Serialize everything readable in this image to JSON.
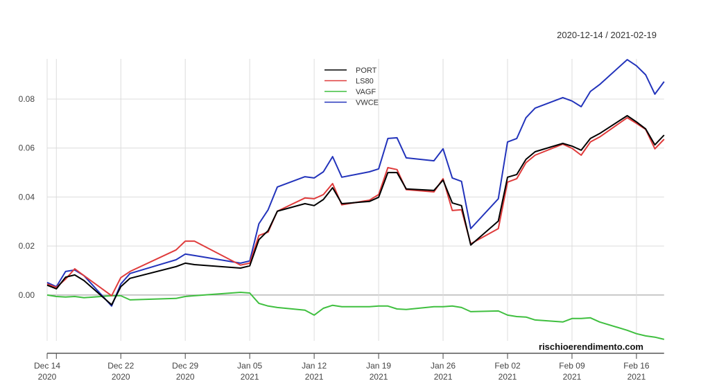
{
  "chart_data": {
    "type": "line",
    "date_range_label": "2020-12-14 / 2021-02-19",
    "watermark": "rischioerendimento.com",
    "ylim": [
      -0.0187,
      0.0964
    ],
    "grid": true,
    "legend_position": "top-center",
    "y_ticks": [
      "0.00",
      "0.02",
      "0.04",
      "0.06",
      "0.08"
    ],
    "y_tick_values": [
      0,
      0.02,
      0.04,
      0.06,
      0.08
    ],
    "x_ticks": [
      {
        "date": "2020-12-14",
        "line1": "Dec 14",
        "line2": "2020"
      },
      {
        "date": "2020-12-22",
        "line1": "Dec 22",
        "line2": "2020"
      },
      {
        "date": "2020-12-29",
        "line1": "Dec 29",
        "line2": "2020"
      },
      {
        "date": "2021-01-05",
        "line1": "Jan 05",
        "line2": "2021"
      },
      {
        "date": "2021-01-12",
        "line1": "Jan 12",
        "line2": "2021"
      },
      {
        "date": "2021-01-19",
        "line1": "Jan 19",
        "line2": "2021"
      },
      {
        "date": "2021-01-26",
        "line1": "Jan 26",
        "line2": "2021"
      },
      {
        "date": "2021-02-02",
        "line1": "Feb 02",
        "line2": "2021"
      },
      {
        "date": "2021-02-09",
        "line1": "Feb 09",
        "line2": "2021"
      },
      {
        "date": "2021-02-16",
        "line1": "Feb 16",
        "line2": "2021"
      }
    ],
    "x": [
      "2020-12-14",
      "2020-12-15",
      "2020-12-16",
      "2020-12-17",
      "2020-12-18",
      "2020-12-21",
      "2020-12-22",
      "2020-12-23",
      "2020-12-28",
      "2020-12-29",
      "2020-12-30",
      "2021-01-04",
      "2021-01-05",
      "2021-01-06",
      "2021-01-07",
      "2021-01-08",
      "2021-01-11",
      "2021-01-12",
      "2021-01-13",
      "2021-01-14",
      "2021-01-15",
      "2021-01-18",
      "2021-01-19",
      "2021-01-20",
      "2021-01-21",
      "2021-01-22",
      "2021-01-25",
      "2021-01-26",
      "2021-01-27",
      "2021-01-28",
      "2021-01-29",
      "2021-02-01",
      "2021-02-02",
      "2021-02-03",
      "2021-02-04",
      "2021-02-05",
      "2021-02-08",
      "2021-02-09",
      "2021-02-10",
      "2021-02-11",
      "2021-02-12",
      "2021-02-15",
      "2021-02-16",
      "2021-02-17",
      "2021-02-18",
      "2021-02-19"
    ],
    "series": [
      {
        "name": "PORT",
        "color": "#000000",
        "values": [
          0.004,
          0.0025,
          0.0073,
          0.0082,
          0.0059,
          -0.004,
          0.0034,
          0.0068,
          0.0116,
          0.013,
          0.0124,
          0.011,
          0.0119,
          0.0226,
          0.0263,
          0.0342,
          0.0373,
          0.0365,
          0.039,
          0.0438,
          0.0373,
          0.0382,
          0.0399,
          0.05,
          0.05,
          0.0433,
          0.0427,
          0.0469,
          0.0376,
          0.0365,
          0.0204,
          0.0302,
          0.0481,
          0.0492,
          0.0554,
          0.0585,
          0.0619,
          0.0608,
          0.0591,
          0.0639,
          0.0659,
          0.0732,
          0.0707,
          0.0678,
          0.0613,
          0.0653
        ]
      },
      {
        "name": "LS80",
        "color": "#df3b3b",
        "values": [
          0.0045,
          0.0031,
          0.0065,
          0.0107,
          0.0079,
          -0.0003,
          0.0071,
          0.0096,
          0.0184,
          0.022,
          0.022,
          0.0122,
          0.013,
          0.0243,
          0.0257,
          0.0342,
          0.0396,
          0.0393,
          0.041,
          0.0455,
          0.0368,
          0.0387,
          0.041,
          0.052,
          0.0512,
          0.043,
          0.0421,
          0.0475,
          0.0345,
          0.0348,
          0.0209,
          0.0271,
          0.0461,
          0.0475,
          0.054,
          0.0571,
          0.0616,
          0.0599,
          0.0571,
          0.0625,
          0.0645,
          0.0724,
          0.0701,
          0.0676,
          0.0597,
          0.0636
        ]
      },
      {
        "name": "VAGF",
        "color": "#3fbf3f",
        "values": [
          0.0,
          -0.0006,
          -0.0008,
          -0.0006,
          -0.0011,
          -0.0003,
          -0.0003,
          -0.002,
          -0.0014,
          -0.0006,
          -0.0003,
          0.0011,
          0.0008,
          -0.0034,
          -0.0045,
          -0.0051,
          -0.0062,
          -0.0082,
          -0.0054,
          -0.0042,
          -0.0048,
          -0.0048,
          -0.0045,
          -0.0045,
          -0.0057,
          -0.0059,
          -0.0048,
          -0.0048,
          -0.0045,
          -0.0051,
          -0.0068,
          -0.0065,
          -0.0082,
          -0.0088,
          -0.009,
          -0.0102,
          -0.011,
          -0.0096,
          -0.0096,
          -0.0093,
          -0.011,
          -0.0144,
          -0.0158,
          -0.0167,
          -0.0172,
          -0.0181
        ]
      },
      {
        "name": "VWCE",
        "color": "#2233bb",
        "values": [
          0.0051,
          0.0034,
          0.0096,
          0.0102,
          0.0079,
          -0.0045,
          0.0045,
          0.0088,
          0.0144,
          0.0167,
          0.0161,
          0.013,
          0.0139,
          0.0291,
          0.0348,
          0.0441,
          0.0483,
          0.0478,
          0.0503,
          0.0565,
          0.0481,
          0.0503,
          0.0515,
          0.0639,
          0.0642,
          0.056,
          0.0548,
          0.0597,
          0.0478,
          0.0464,
          0.0271,
          0.0393,
          0.0625,
          0.0639,
          0.0724,
          0.0763,
          0.0806,
          0.0792,
          0.0769,
          0.0831,
          0.0859,
          0.0961,
          0.0936,
          0.0899,
          0.082,
          0.0871
        ]
      }
    ]
  }
}
